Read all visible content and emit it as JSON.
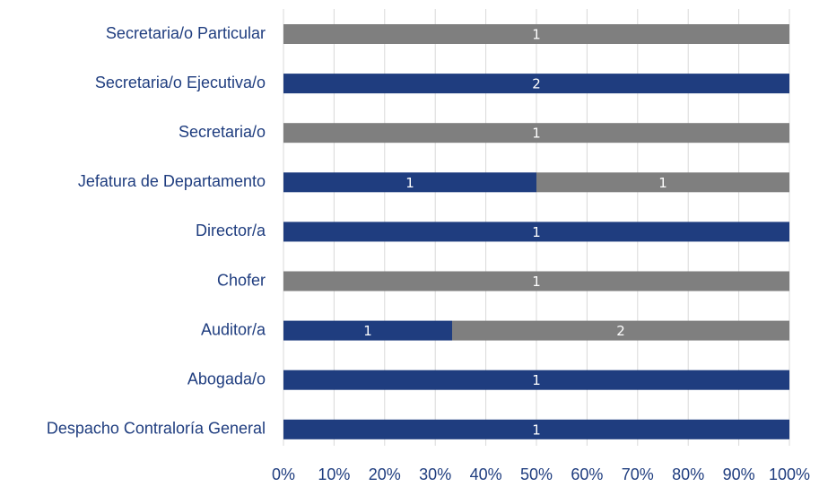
{
  "chart_data": {
    "type": "bar",
    "orientation": "horizontal",
    "stacked": "percent",
    "categories": [
      "Secretaria/o Particular",
      "Secretaria/o Ejecutiva/o",
      "Secretaria/o",
      "Jefatura de Departamento",
      "Director/a",
      "Chofer",
      "Auditor/a",
      "Abogada/o",
      "Despacho Contraloría General"
    ],
    "series": [
      {
        "color": "#1f3d7f",
        "values": [
          null,
          2,
          null,
          1,
          1,
          null,
          1,
          1,
          1
        ]
      },
      {
        "color": "#7f7f7f",
        "values": [
          1,
          null,
          1,
          1,
          null,
          1,
          2,
          null,
          null
        ]
      }
    ],
    "xlim": [
      0,
      100
    ],
    "xticks": [
      {
        "value": 0,
        "label": "0%"
      },
      {
        "value": 10,
        "label": "10%"
      },
      {
        "value": 20,
        "label": "20%"
      },
      {
        "value": 30,
        "label": "30%"
      },
      {
        "value": 40,
        "label": "40%"
      },
      {
        "value": 50,
        "label": "50%"
      },
      {
        "value": 60,
        "label": "60%"
      },
      {
        "value": 70,
        "label": "70%"
      },
      {
        "value": 80,
        "label": "80%"
      },
      {
        "value": 90,
        "label": "90%"
      },
      {
        "value": 100,
        "label": "100%"
      }
    ],
    "grid": true
  }
}
